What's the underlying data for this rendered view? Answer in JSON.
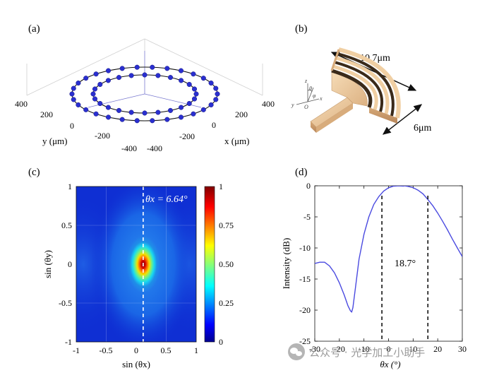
{
  "panels": {
    "a": {
      "label": "(a)",
      "ylabel": "y (μm)",
      "xlabel": "x (μm)"
    },
    "b": {
      "label": "(b)",
      "dim_long": "10.7μm",
      "dim_short": "6μm",
      "axes_labels": [
        "z",
        "θ",
        "φ",
        "y",
        "x",
        "O"
      ]
    },
    "c": {
      "label": "(c)",
      "xlabel": "sin (θx)",
      "ylabel": "sin (θy)",
      "annotation": "θx = 6.64°"
    },
    "d": {
      "label": "(d)",
      "xlabel": "θx (°)",
      "ylabel": "Intensity (dB)",
      "annotation": "18.7°"
    }
  },
  "watermark": {
    "text": "公众号 · 光学加工小助手",
    "icon": "wechat-icon"
  },
  "chart_data": [
    {
      "type": "scatter",
      "panel": "a",
      "title": "",
      "xlabel": "x (μm)",
      "ylabel": "y (μm)",
      "x_ticks": [
        "-400",
        "-200",
        "0",
        "200",
        "400"
      ],
      "y_ticks": [
        "-400",
        "-200",
        "0",
        "200",
        "400"
      ],
      "xlim": [
        -400,
        400
      ],
      "ylim": [
        -400,
        400
      ],
      "rings": [
        {
          "radius": 350,
          "points": 30
        },
        {
          "radius": 250,
          "points": 24
        }
      ],
      "marker_color": "#2a2fd0"
    },
    {
      "type": "heatmap",
      "panel": "c",
      "xlabel": "sin (θx)",
      "ylabel": "sin (θy)",
      "xlim": [
        -1,
        1
      ],
      "ylim": [
        -1,
        1
      ],
      "x_ticks": [
        "-1",
        "-0.5",
        "0",
        "0.5",
        "1"
      ],
      "y_ticks": [
        "1",
        "0.5",
        "0",
        "-0.5",
        "-1"
      ],
      "peak": {
        "sin_x": 0.116,
        "sin_y": 0
      },
      "colorbar": {
        "min": 0,
        "max": 1,
        "ticks": [
          "1",
          "0.75",
          "0.50",
          "0.25",
          "0"
        ]
      },
      "marker_line_sin_x": 0.116
    },
    {
      "type": "line",
      "panel": "d",
      "xlabel": "θx (°)",
      "ylabel": "Intensity (dB)",
      "xlim": [
        -30,
        30
      ],
      "ylim": [
        -25,
        0
      ],
      "x_ticks": [
        "-30",
        "-20",
        "-10",
        "0",
        "10",
        "20",
        "30"
      ],
      "y_ticks": [
        "0",
        "-5",
        "-10",
        "-15",
        "-20",
        "-25"
      ],
      "series": [
        {
          "color": "#4a4ae0",
          "x": [
            -30,
            -28,
            -26,
            -24,
            -22,
            -20,
            -18,
            -16.5,
            -15.5,
            -15,
            -14.5,
            -13.5,
            -12,
            -10,
            -8,
            -6,
            -4,
            -2,
            0,
            2,
            4,
            6,
            6.6,
            8,
            10,
            12,
            14,
            16,
            18,
            20,
            22,
            24,
            26,
            28,
            30
          ],
          "y": [
            -12.5,
            -12.3,
            -12.3,
            -12.9,
            -14.0,
            -15.6,
            -17.6,
            -19.3,
            -20.1,
            -20.3,
            -19.6,
            -16.5,
            -11.8,
            -7.8,
            -5.0,
            -3.0,
            -1.75,
            -0.85,
            -0.32,
            -0.06,
            0,
            -0.05,
            0,
            -0.1,
            -0.3,
            -0.7,
            -1.3,
            -2.2,
            -3.2,
            -4.4,
            -5.7,
            -7.1,
            -8.6,
            -10.0,
            -11.4
          ]
        }
      ],
      "vlines": [
        -2.7,
        16.0
      ],
      "annotation": "18.7°"
    }
  ]
}
